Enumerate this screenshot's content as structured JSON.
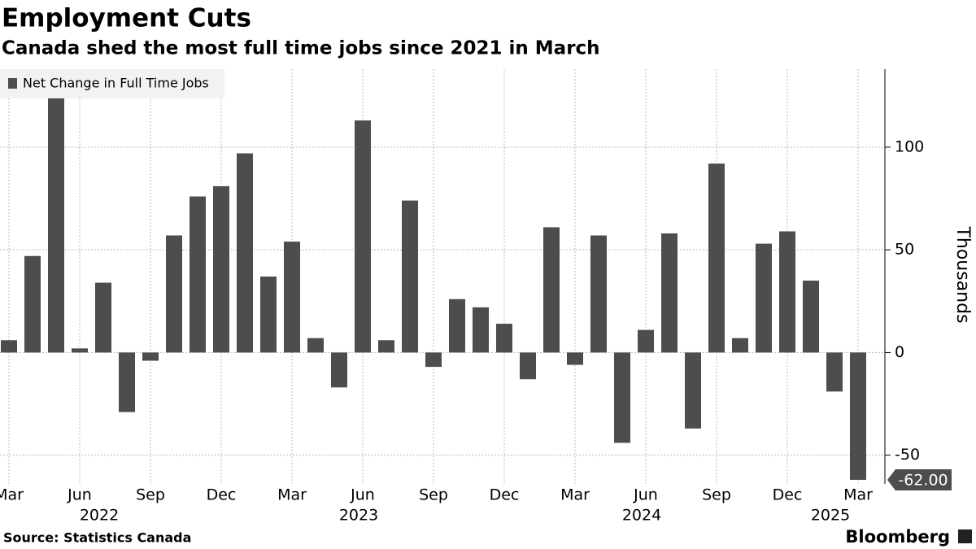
{
  "chart_data": {
    "type": "bar",
    "title": "Employment Cuts",
    "subtitle": "Canada shed the most full time jobs since 2021 in March",
    "source": "Source: Statistics Canada",
    "brand": "Bloomberg",
    "y_axis_label": "Thousands",
    "categories": [
      "Mar",
      null,
      null,
      "Jun",
      null,
      null,
      "Sep",
      null,
      null,
      "Dec",
      null,
      null,
      "Mar",
      null,
      null,
      "Jun",
      null,
      null,
      "Sep",
      null,
      null,
      "Dec",
      null,
      null,
      "Mar",
      null,
      null,
      "Jun",
      null,
      null,
      "Sep",
      null,
      null,
      "Dec",
      null,
      null,
      "Mar"
    ],
    "year_labels": [
      null,
      null,
      null,
      null,
      "2022",
      null,
      null,
      null,
      null,
      null,
      null,
      null,
      null,
      null,
      null,
      "2023",
      null,
      null,
      null,
      null,
      null,
      null,
      null,
      null,
      null,
      null,
      null,
      "2024",
      null,
      null,
      null,
      null,
      null,
      null,
      null,
      "2025",
      null
    ],
    "series": [
      {
        "name": "Net Change in Full Time Jobs",
        "color": "#4d4d4d",
        "values": [
          6,
          47,
          126,
          2,
          34,
          -29,
          -4,
          57,
          76,
          81,
          97,
          37,
          54,
          7,
          -17,
          113,
          6,
          74,
          -7,
          26,
          22,
          14,
          -13,
          61,
          -6,
          57,
          -44,
          11,
          58,
          -37,
          92,
          7,
          53,
          59,
          35,
          -19,
          -62
        ],
        "value_labels": [
          null,
          null,
          null,
          null,
          null,
          null,
          null,
          null,
          null,
          null,
          null,
          null,
          null,
          null,
          null,
          null,
          null,
          null,
          null,
          null,
          null,
          null,
          null,
          null,
          null,
          null,
          null,
          null,
          null,
          null,
          null,
          null,
          null,
          null,
          null,
          null,
          "-62.00"
        ]
      }
    ],
    "ylim": [
      -64,
      138
    ],
    "yticks": [
      -50,
      0,
      50,
      100
    ],
    "grid": true
  }
}
